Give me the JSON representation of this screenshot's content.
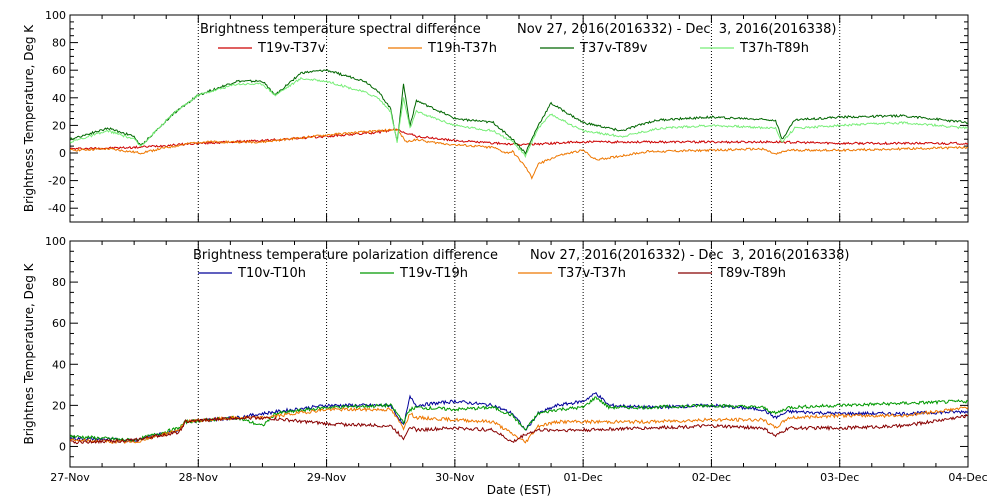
{
  "chart_data": [
    {
      "type": "line",
      "title": "Brightness temperature spectral difference",
      "date_range": "Nov 27, 2016(2016332) - Dec  3, 2016(2016338)",
      "ylabel": "Brightness Temperature, Deg K",
      "xlabel": "",
      "ylim": [
        -50,
        100
      ],
      "yticks": [
        -40,
        -20,
        0,
        20,
        40,
        60,
        80,
        100
      ],
      "xlim": [
        0,
        7
      ],
      "x_unit": "days since 27-Nov",
      "grid": "vertical dotted lines at each day",
      "legend_position": "top, single row",
      "series": [
        {
          "name": "T19v-T37v",
          "color": "#cc0000",
          "x": [
            0,
            0.5,
            1,
            1.5,
            2,
            2.4,
            2.55,
            2.7,
            3,
            3.5,
            4,
            4.5,
            5,
            5.5,
            6,
            6.5,
            7
          ],
          "values": [
            3,
            4,
            7,
            9,
            12,
            15,
            17,
            12,
            9,
            6,
            8,
            8,
            8,
            8,
            7,
            7,
            7
          ]
        },
        {
          "name": "T19h-T37h",
          "color": "#ee7700",
          "x": [
            0,
            0.3,
            0.55,
            0.7,
            1,
            1.5,
            2,
            2.4,
            2.55,
            2.62,
            2.7,
            2.8,
            3,
            3.3,
            3.4,
            3.45,
            3.55,
            3.6,
            3.65,
            3.8,
            4,
            4.1,
            4.3,
            4.5,
            5,
            5.4,
            5.5,
            5.6,
            6,
            6.5,
            7
          ],
          "values": [
            2,
            3,
            0,
            3,
            8,
            8,
            13,
            16,
            17,
            8,
            10,
            8,
            6,
            4,
            0,
            1,
            -10,
            -18,
            -8,
            -2,
            2,
            -5,
            -2,
            1,
            2,
            3,
            -1,
            2,
            2,
            3,
            4
          ]
        },
        {
          "name": "T37v-T89v",
          "color": "#006600",
          "x": [
            0,
            0.3,
            0.5,
            0.55,
            0.8,
            1,
            1.3,
            1.5,
            1.6,
            1.8,
            2,
            2.3,
            2.4,
            2.5,
            2.55,
            2.6,
            2.65,
            2.7,
            3,
            3.3,
            3.45,
            3.55,
            3.65,
            3.75,
            4,
            4.3,
            4.5,
            4.6,
            5,
            5.5,
            5.55,
            5.65,
            6,
            6.5,
            7
          ],
          "values": [
            10,
            18,
            12,
            5,
            28,
            42,
            52,
            52,
            42,
            58,
            60,
            52,
            45,
            32,
            8,
            50,
            20,
            38,
            25,
            22,
            10,
            0,
            20,
            36,
            22,
            16,
            22,
            24,
            26,
            24,
            10,
            24,
            26,
            27,
            22
          ]
        },
        {
          "name": "T37h-T89h",
          "color": "#77ee77",
          "x": [
            0,
            0.3,
            0.5,
            0.55,
            0.8,
            1,
            1.3,
            1.5,
            1.6,
            1.8,
            2,
            2.3,
            2.4,
            2.5,
            2.55,
            2.6,
            2.65,
            2.7,
            3,
            3.3,
            3.45,
            3.55,
            3.65,
            3.75,
            4,
            4.3,
            4.5,
            4.6,
            5,
            5.5,
            5.55,
            5.65,
            6,
            6.5,
            7
          ],
          "values": [
            8,
            16,
            10,
            5,
            28,
            42,
            50,
            50,
            42,
            54,
            52,
            44,
            40,
            30,
            8,
            40,
            18,
            30,
            20,
            16,
            8,
            -2,
            18,
            28,
            16,
            12,
            16,
            18,
            20,
            18,
            8,
            18,
            20,
            22,
            18
          ]
        }
      ]
    },
    {
      "type": "line",
      "title": "Brightness temperature polarization difference",
      "date_range": "Nov 27, 2016(2016332) - Dec  3, 2016(2016338)",
      "ylabel": "Brightnes Temperature, Deg K",
      "xlabel": "Date (EST)",
      "ylim": [
        -10,
        100
      ],
      "yticks": [
        0,
        20,
        40,
        60,
        80,
        100
      ],
      "xlim": [
        0,
        7
      ],
      "x_unit": "days since 27-Nov",
      "xticks": [
        "27-Nov",
        "28-Nov",
        "29-Nov",
        "30-Nov",
        "01-Dec",
        "02-Dec",
        "03-Dec",
        "04-Dec"
      ],
      "grid": "vertical dotted lines at each day",
      "legend_position": "top, single row",
      "series": [
        {
          "name": "T10v-T10h",
          "color": "#000099",
          "x": [
            0,
            0.5,
            0.85,
            0.9,
            1.3,
            1.5,
            2,
            2.5,
            2.6,
            2.65,
            2.7,
            3,
            3.3,
            3.45,
            3.55,
            3.65,
            3.8,
            4,
            4.1,
            4.2,
            4.5,
            5,
            5.4,
            5.5,
            5.6,
            6,
            6.5,
            7
          ],
          "values": [
            4,
            3,
            8,
            12,
            14,
            16,
            20,
            20,
            10,
            24,
            20,
            22,
            20,
            16,
            8,
            16,
            20,
            22,
            26,
            20,
            19,
            20,
            18,
            14,
            17,
            16,
            16,
            17
          ]
        },
        {
          "name": "T19v-T19h",
          "color": "#009900",
          "x": [
            0,
            0.5,
            0.85,
            0.9,
            1.3,
            1.5,
            1.6,
            2,
            2.5,
            2.6,
            2.65,
            2.7,
            3,
            3.3,
            3.45,
            3.55,
            3.65,
            3.8,
            4,
            4.1,
            4.2,
            4.5,
            5,
            5.4,
            5.5,
            5.6,
            6,
            6.5,
            7
          ],
          "values": [
            5,
            3,
            9,
            12,
            14,
            10,
            16,
            19,
            20,
            12,
            18,
            19,
            18,
            19,
            15,
            8,
            16,
            18,
            19,
            24,
            19,
            19,
            20,
            19,
            16,
            19,
            20,
            21,
            22
          ]
        },
        {
          "name": "T37v-T37h",
          "color": "#ee7700",
          "x": [
            0,
            0.5,
            0.85,
            0.9,
            1.3,
            1.5,
            2,
            2.5,
            2.6,
            2.65,
            2.7,
            3,
            3.3,
            3.45,
            3.55,
            3.65,
            3.8,
            4,
            4.5,
            5,
            5.4,
            5.5,
            5.6,
            6,
            6.5,
            7
          ],
          "values": [
            3,
            2,
            8,
            12,
            14,
            14,
            18,
            18,
            9,
            16,
            14,
            13,
            12,
            6,
            2,
            10,
            12,
            12,
            12,
            13,
            13,
            9,
            14,
            15,
            15,
            19
          ]
        },
        {
          "name": "T89v-T89h",
          "color": "#880000",
          "x": [
            0,
            0.5,
            0.85,
            0.9,
            1.3,
            1.5,
            2,
            2.5,
            2.6,
            2.65,
            2.7,
            3,
            3.3,
            3.45,
            3.55,
            3.65,
            3.8,
            4,
            4.5,
            5,
            5.4,
            5.5,
            5.6,
            6,
            6.5,
            7
          ],
          "values": [
            2,
            3,
            7,
            12,
            14,
            14,
            11,
            10,
            4,
            10,
            8,
            9,
            8,
            2,
            6,
            8,
            8,
            8,
            9,
            10,
            9,
            5,
            9,
            9,
            10,
            15
          ]
        }
      ]
    }
  ]
}
